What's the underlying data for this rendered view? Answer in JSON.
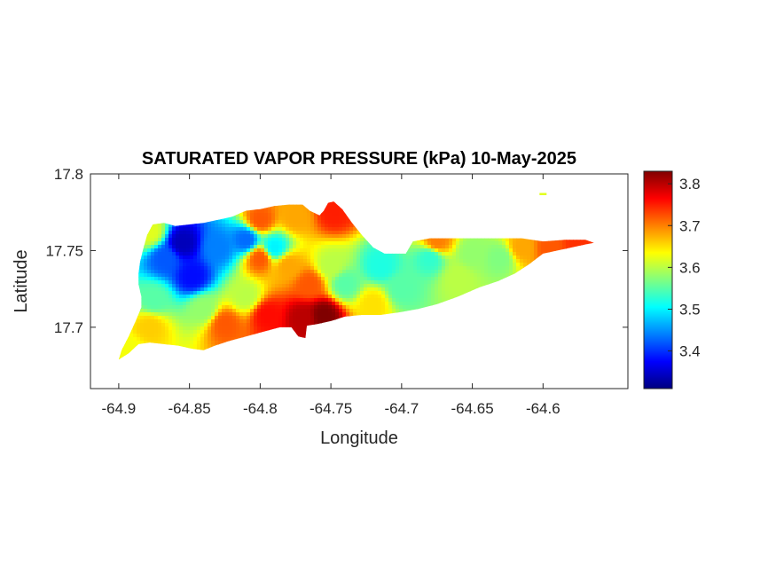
{
  "chart_data": {
    "type": "heatmap",
    "title": "SATURATED VAPOR PRESSURE (kPa) 10-May-2025",
    "xlabel": "Longitude",
    "ylabel": "Latitude",
    "xlim": [
      -64.92,
      -64.54
    ],
    "ylim": [
      17.66,
      17.8
    ],
    "xticks": [
      -64.9,
      -64.85,
      -64.8,
      -64.75,
      -64.7,
      -64.65,
      -64.6
    ],
    "xtick_labels": [
      "-64.9",
      "-64.85",
      "-64.8",
      "-64.75",
      "-64.7",
      "-64.65",
      "-64.6"
    ],
    "yticks": [
      17.7,
      17.75,
      17.8
    ],
    "ytick_labels": [
      "17.7",
      "17.75",
      "17.8"
    ],
    "colorbar": {
      "range": [
        3.31,
        3.83
      ],
      "ticks": [
        3.4,
        3.5,
        3.6,
        3.7,
        3.8
      ],
      "tick_labels": [
        "3.4",
        "3.5",
        "3.6",
        "3.7",
        "3.8"
      ],
      "colormap": "jet"
    },
    "grid": false,
    "island_outline": [
      [
        -64.9,
        17.679
      ],
      [
        -64.893,
        17.683
      ],
      [
        -64.886,
        17.689
      ],
      [
        -64.878,
        17.69
      ],
      [
        -64.868,
        17.689
      ],
      [
        -64.858,
        17.688
      ],
      [
        -64.848,
        17.686
      ],
      [
        -64.84,
        17.685
      ],
      [
        -64.832,
        17.688
      ],
      [
        -64.822,
        17.691
      ],
      [
        -64.81,
        17.694
      ],
      [
        -64.798,
        17.697
      ],
      [
        -64.786,
        17.7
      ],
      [
        -64.778,
        17.7
      ],
      [
        -64.773,
        17.694
      ],
      [
        -64.768,
        17.693
      ],
      [
        -64.767,
        17.701
      ],
      [
        -64.76,
        17.702
      ],
      [
        -64.75,
        17.704
      ],
      [
        -64.74,
        17.707
      ],
      [
        -64.728,
        17.708
      ],
      [
        -64.715,
        17.708
      ],
      [
        -64.7,
        17.71
      ],
      [
        -64.688,
        17.712
      ],
      [
        -64.675,
        17.715
      ],
      [
        -64.66,
        17.72
      ],
      [
        -64.645,
        17.726
      ],
      [
        -64.632,
        17.73
      ],
      [
        -64.62,
        17.735
      ],
      [
        -64.61,
        17.741
      ],
      [
        -64.6,
        17.748
      ],
      [
        -64.585,
        17.751
      ],
      [
        -64.57,
        17.754
      ],
      [
        -64.564,
        17.755
      ],
      [
        -64.57,
        17.757
      ],
      [
        -64.585,
        17.757
      ],
      [
        -64.6,
        17.756
      ],
      [
        -64.615,
        17.758
      ],
      [
        -64.63,
        17.758
      ],
      [
        -64.648,
        17.758
      ],
      [
        -64.665,
        17.758
      ],
      [
        -64.68,
        17.758
      ],
      [
        -64.692,
        17.756
      ],
      [
        -64.697,
        17.748
      ],
      [
        -64.712,
        17.748
      ],
      [
        -64.72,
        17.752
      ],
      [
        -64.728,
        17.76
      ],
      [
        -64.735,
        17.768
      ],
      [
        -64.742,
        17.777
      ],
      [
        -64.748,
        17.782
      ],
      [
        -64.752,
        17.781
      ],
      [
        -64.755,
        17.776
      ],
      [
        -64.758,
        17.773
      ],
      [
        -64.765,
        17.776
      ],
      [
        -64.77,
        17.78
      ],
      [
        -64.78,
        17.78
      ],
      [
        -64.79,
        17.779
      ],
      [
        -64.8,
        17.777
      ],
      [
        -64.81,
        17.776
      ],
      [
        -64.82,
        17.772
      ],
      [
        -64.83,
        17.77
      ],
      [
        -64.84,
        17.768
      ],
      [
        -64.85,
        17.767
      ],
      [
        -64.86,
        17.766
      ],
      [
        -64.868,
        17.768
      ],
      [
        -64.876,
        17.767
      ],
      [
        -64.88,
        17.76
      ],
      [
        -64.883,
        17.75
      ],
      [
        -64.885,
        17.742
      ],
      [
        -64.886,
        17.735
      ],
      [
        -64.886,
        17.728
      ],
      [
        -64.884,
        17.72
      ],
      [
        -64.884,
        17.713
      ],
      [
        -64.888,
        17.704
      ],
      [
        -64.893,
        17.694
      ],
      [
        -64.898,
        17.685
      ]
    ],
    "field_anchors": [
      {
        "lon": -64.855,
        "lat": 17.755,
        "value": 3.34
      },
      {
        "lon": -64.848,
        "lat": 17.733,
        "value": 3.38
      },
      {
        "lon": -64.867,
        "lat": 17.745,
        "value": 3.42
      },
      {
        "lon": -64.83,
        "lat": 17.752,
        "value": 3.44
      },
      {
        "lon": -64.81,
        "lat": 17.757,
        "value": 3.43
      },
      {
        "lon": -64.79,
        "lat": 17.752,
        "value": 3.5
      },
      {
        "lon": -64.875,
        "lat": 17.718,
        "value": 3.55
      },
      {
        "lon": -64.84,
        "lat": 17.712,
        "value": 3.58
      },
      {
        "lon": -64.81,
        "lat": 17.72,
        "value": 3.6
      },
      {
        "lon": -64.878,
        "lat": 17.7,
        "value": 3.66
      },
      {
        "lon": -64.825,
        "lat": 17.702,
        "value": 3.72
      },
      {
        "lon": -64.795,
        "lat": 17.708,
        "value": 3.76
      },
      {
        "lon": -64.77,
        "lat": 17.706,
        "value": 3.8
      },
      {
        "lon": -64.755,
        "lat": 17.708,
        "value": 3.83
      },
      {
        "lon": -64.765,
        "lat": 17.728,
        "value": 3.72
      },
      {
        "lon": -64.78,
        "lat": 17.74,
        "value": 3.68
      },
      {
        "lon": -64.8,
        "lat": 17.745,
        "value": 3.72
      },
      {
        "lon": -64.8,
        "lat": 17.77,
        "value": 3.72
      },
      {
        "lon": -64.775,
        "lat": 17.772,
        "value": 3.68
      },
      {
        "lon": -64.748,
        "lat": 17.775,
        "value": 3.75
      },
      {
        "lon": -64.75,
        "lat": 17.74,
        "value": 3.6
      },
      {
        "lon": -64.74,
        "lat": 17.728,
        "value": 3.55
      },
      {
        "lon": -64.715,
        "lat": 17.74,
        "value": 3.52
      },
      {
        "lon": -64.7,
        "lat": 17.725,
        "value": 3.55
      },
      {
        "lon": -64.72,
        "lat": 17.715,
        "value": 3.65
      },
      {
        "lon": -64.68,
        "lat": 17.745,
        "value": 3.53
      },
      {
        "lon": -64.66,
        "lat": 17.732,
        "value": 3.6
      },
      {
        "lon": -64.65,
        "lat": 17.748,
        "value": 3.58
      },
      {
        "lon": -64.63,
        "lat": 17.745,
        "value": 3.57
      },
      {
        "lon": -64.675,
        "lat": 17.756,
        "value": 3.7
      },
      {
        "lon": -64.615,
        "lat": 17.752,
        "value": 3.68
      },
      {
        "lon": -64.595,
        "lat": 17.752,
        "value": 3.72
      },
      {
        "lon": -64.575,
        "lat": 17.755,
        "value": 3.74
      },
      {
        "lon": -64.893,
        "lat": 17.685,
        "value": 3.63
      },
      {
        "lon": -64.878,
        "lat": 17.762,
        "value": 3.62
      }
    ],
    "islet": {
      "lon": -64.6,
      "lat": 17.787,
      "value": 3.62
    }
  }
}
